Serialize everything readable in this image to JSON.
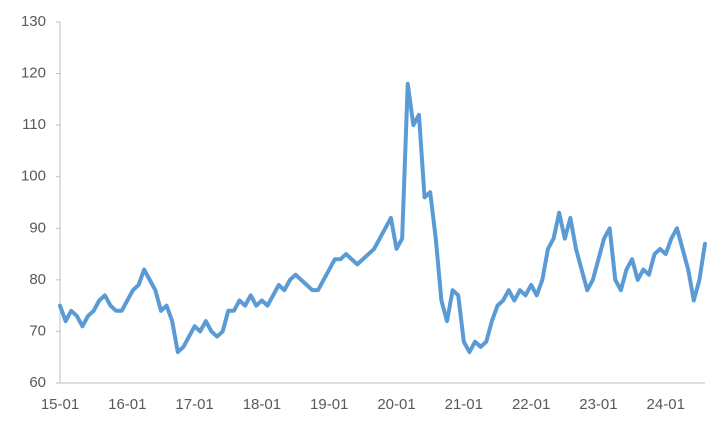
{
  "chart_data": {
    "type": "line",
    "categories": [
      "15-01",
      null,
      null,
      null,
      null,
      null,
      null,
      null,
      null,
      null,
      null,
      null,
      "16-01",
      null,
      null,
      null,
      null,
      null,
      null,
      null,
      null,
      null,
      null,
      null,
      "17-01",
      null,
      null,
      null,
      null,
      null,
      null,
      null,
      null,
      null,
      null,
      null,
      "18-01",
      null,
      null,
      null,
      null,
      null,
      null,
      null,
      null,
      null,
      null,
      null,
      "19-01",
      null,
      null,
      null,
      null,
      null,
      null,
      null,
      null,
      null,
      null,
      null,
      "20-01",
      null,
      null,
      null,
      null,
      null,
      null,
      null,
      null,
      null,
      null,
      null,
      "21-01",
      null,
      null,
      null,
      null,
      null,
      null,
      null,
      null,
      null,
      null,
      null,
      "22-01",
      null,
      null,
      null,
      null,
      null,
      null,
      null,
      null,
      null,
      null,
      null,
      "23-01",
      null,
      null,
      null,
      null,
      null,
      null,
      null,
      null,
      null,
      null,
      null,
      "24-01",
      null,
      null,
      null,
      null,
      null,
      null,
      null
    ],
    "series": [
      {
        "color": "#5b9bd5",
        "values": [
          75,
          72,
          74,
          73,
          71,
          73,
          74,
          76,
          77,
          75,
          74,
          74,
          76,
          78,
          79,
          82,
          80,
          78,
          74,
          75,
          72,
          66,
          67,
          69,
          71,
          70,
          72,
          70,
          69,
          70,
          74,
          74,
          76,
          75,
          77,
          75,
          76,
          75,
          77,
          79,
          78,
          80,
          81,
          80,
          79,
          78,
          78,
          80,
          82,
          84,
          84,
          85,
          84,
          83,
          84,
          85,
          86,
          88,
          90,
          92,
          86,
          88,
          118,
          110,
          112,
          96,
          97,
          88,
          76,
          72,
          78,
          77,
          68,
          66,
          68,
          67,
          68,
          72,
          75,
          76,
          78,
          76,
          78,
          77,
          79,
          77,
          80,
          86,
          88,
          93,
          88,
          92,
          86,
          82,
          78,
          80,
          84,
          88,
          90,
          80,
          78,
          82,
          84,
          80,
          82,
          81,
          85,
          86,
          85,
          88,
          90,
          86,
          82,
          76,
          80,
          87
        ]
      }
    ],
    "ylim": [
      60,
      130
    ],
    "yticks": [
      60,
      70,
      80,
      90,
      100,
      110,
      120,
      130
    ]
  }
}
